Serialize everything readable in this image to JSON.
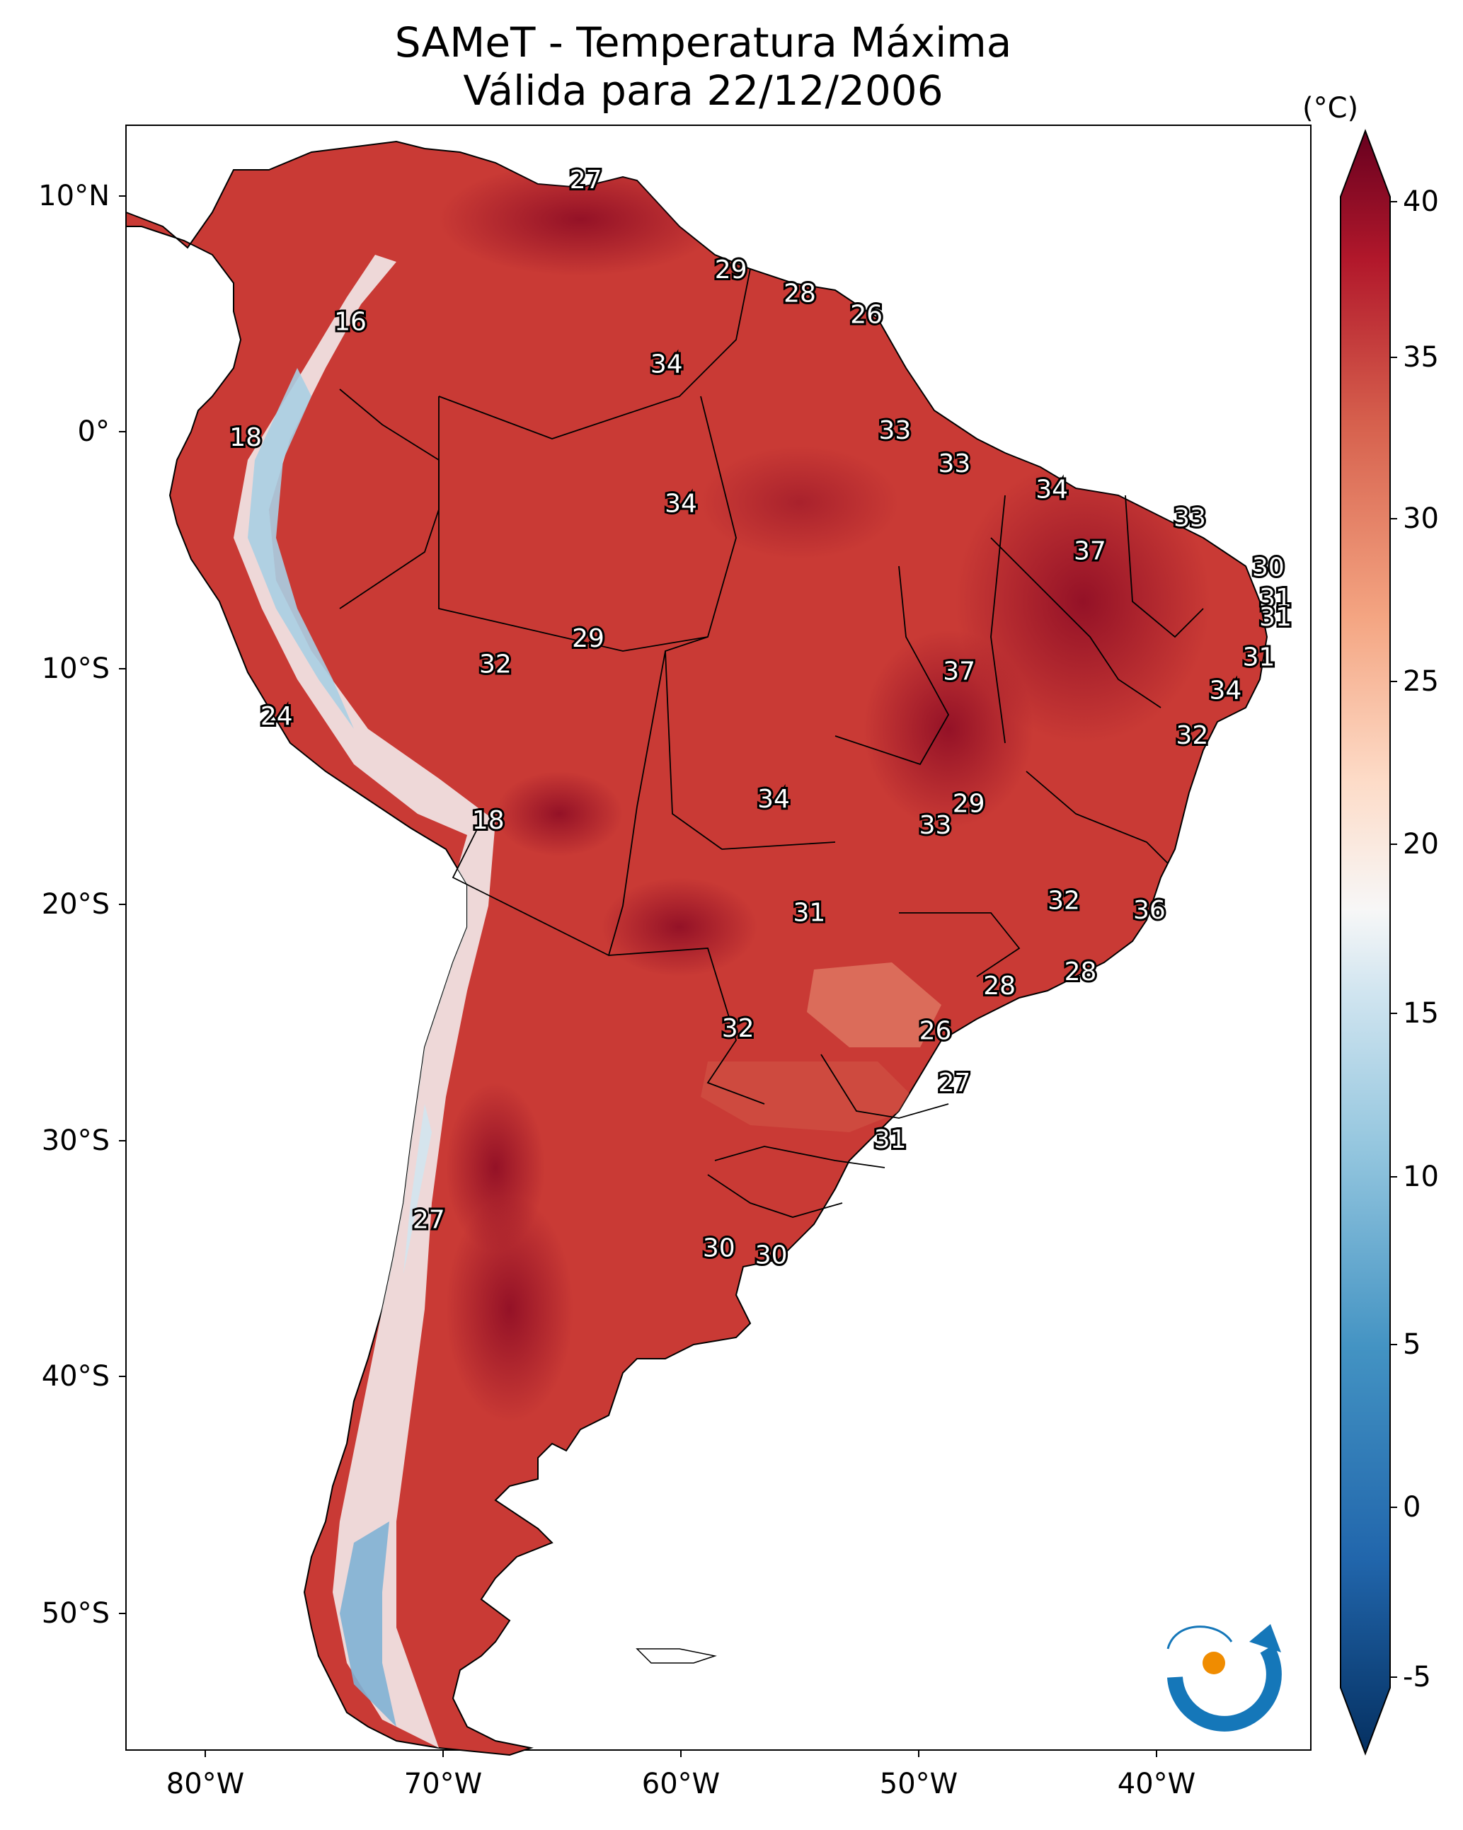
{
  "title": {
    "line1": "SAMeT - Temperatura Máxima",
    "line2": "Válida para 22/12/2006"
  },
  "colorbar": {
    "unit": "(°C)",
    "ticks": [
      "40",
      "35",
      "30",
      "25",
      "20",
      "15",
      "10",
      "5",
      "0",
      "-5"
    ],
    "min": -7,
    "max": 41
  },
  "axes": {
    "lat_labels": [
      "10°N",
      "0°",
      "10°S",
      "20°S",
      "30°S",
      "40°S",
      "50°S"
    ],
    "lon_labels": [
      "80°W",
      "70°W",
      "60°W",
      "50°W",
      "40°W"
    ]
  },
  "station_labels": [
    {
      "text": "27",
      "lon": -64.0,
      "lat": 10.6
    },
    {
      "text": "29",
      "lon": -57.9,
      "lat": 6.8
    },
    {
      "text": "28",
      "lon": -55.0,
      "lat": 5.8
    },
    {
      "text": "26",
      "lon": -52.2,
      "lat": 4.9
    },
    {
      "text": "16",
      "lon": -73.9,
      "lat": 4.6
    },
    {
      "text": "34",
      "lon": -60.6,
      "lat": 2.8
    },
    {
      "text": "33",
      "lon": -51.0,
      "lat": 0.0
    },
    {
      "text": "18",
      "lon": -78.3,
      "lat": -0.3
    },
    {
      "text": "33",
      "lon": -48.5,
      "lat": -1.4
    },
    {
      "text": "34",
      "lon": -44.4,
      "lat": -2.5
    },
    {
      "text": "34",
      "lon": -60.0,
      "lat": -3.1
    },
    {
      "text": "33",
      "lon": -38.6,
      "lat": -3.7
    },
    {
      "text": "37",
      "lon": -42.8,
      "lat": -5.1
    },
    {
      "text": "30",
      "lon": -35.3,
      "lat": -5.8
    },
    {
      "text": "31",
      "lon": -35.0,
      "lat": -7.1
    },
    {
      "text": "31",
      "lon": -35.0,
      "lat": -7.9
    },
    {
      "text": "29",
      "lon": -63.9,
      "lat": -8.8
    },
    {
      "text": "31",
      "lon": -35.7,
      "lat": -9.6
    },
    {
      "text": "32",
      "lon": -67.8,
      "lat": -9.9
    },
    {
      "text": "37",
      "lon": -48.3,
      "lat": -10.2
    },
    {
      "text": "34",
      "lon": -37.1,
      "lat": -11.0
    },
    {
      "text": "24",
      "lon": -77.0,
      "lat": -12.1
    },
    {
      "text": "32",
      "lon": -38.5,
      "lat": -12.9
    },
    {
      "text": "34",
      "lon": -56.1,
      "lat": -15.6
    },
    {
      "text": "29",
      "lon": -47.9,
      "lat": -15.8
    },
    {
      "text": "18",
      "lon": -68.1,
      "lat": -16.5
    },
    {
      "text": "33",
      "lon": -49.3,
      "lat": -16.7
    },
    {
      "text": "32",
      "lon": -43.9,
      "lat": -19.9
    },
    {
      "text": "36",
      "lon": -40.3,
      "lat": -20.3
    },
    {
      "text": "31",
      "lon": -54.6,
      "lat": -20.4
    },
    {
      "text": "28",
      "lon": -43.2,
      "lat": -22.9
    },
    {
      "text": "28",
      "lon": -46.6,
      "lat": -23.5
    },
    {
      "text": "32",
      "lon": -57.6,
      "lat": -25.3
    },
    {
      "text": "26",
      "lon": -49.3,
      "lat": -25.4
    },
    {
      "text": "27",
      "lon": -48.5,
      "lat": -27.6
    },
    {
      "text": "31",
      "lon": -51.2,
      "lat": -30.0
    },
    {
      "text": "27",
      "lon": -70.6,
      "lat": -33.4
    },
    {
      "text": "30",
      "lon": -58.4,
      "lat": -34.6
    },
    {
      "text": "30",
      "lon": -56.2,
      "lat": -34.9
    }
  ]
}
